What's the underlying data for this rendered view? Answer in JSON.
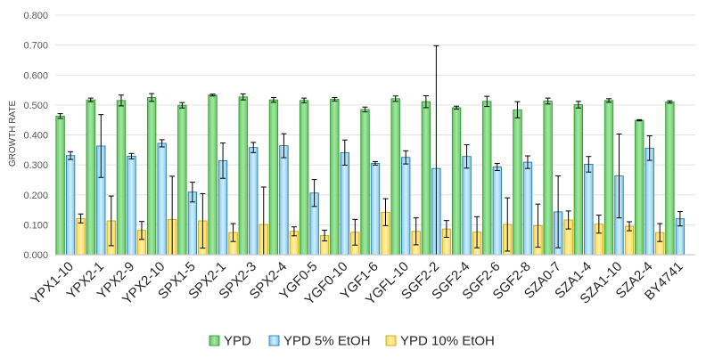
{
  "chart_data": {
    "type": "bar",
    "title": "",
    "xlabel": "",
    "ylabel": "GROWTH RATE",
    "ylim": [
      0,
      0.8
    ],
    "yticks": [
      "0.000",
      "0.100",
      "0.200",
      "0.300",
      "0.400",
      "0.500",
      "0.600",
      "0.700",
      "0.800"
    ],
    "grid": true,
    "legend_position": "bottom",
    "categories": [
      "YPX1-10",
      "YPX2-1",
      "YPX2-9",
      "YPX2-10",
      "SPX1-5",
      "SPX2-1",
      "SPX2-3",
      "SPX2-4",
      "YGF0-5",
      "YGF0-10",
      "YGF1-6",
      "YGFL-10",
      "SGF2-2",
      "SGF2-4",
      "SGF2-6",
      "SGF2-8",
      "SZA0-7",
      "SZA1-4",
      "SZA1-10",
      "SZA2-4",
      "BY4741"
    ],
    "series": [
      {
        "name": "YPD",
        "color": "#8fd98f",
        "values": [
          0.463,
          0.517,
          0.515,
          0.525,
          0.499,
          0.533,
          0.527,
          0.517,
          0.515,
          0.519,
          0.485,
          0.521,
          0.511,
          0.491,
          0.512,
          0.484,
          0.513,
          0.501,
          0.515,
          0.449,
          0.51
        ],
        "errors": [
          0.008,
          0.006,
          0.018,
          0.013,
          0.009,
          0.003,
          0.01,
          0.008,
          0.008,
          0.006,
          0.008,
          0.009,
          0.02,
          0.005,
          0.017,
          0.027,
          0.01,
          0.011,
          0.006,
          0.002,
          0.004
        ]
      },
      {
        "name": "YPD 5% EtOH",
        "color": "#b9e2f5",
        "values": [
          0.331,
          0.363,
          0.329,
          0.372,
          0.209,
          0.314,
          0.358,
          0.364,
          0.206,
          0.341,
          0.305,
          0.325,
          0.288,
          0.328,
          0.293,
          0.309,
          0.143,
          0.302,
          0.263,
          0.356,
          0.12
        ],
        "errors": [
          0.013,
          0.105,
          0.009,
          0.012,
          0.033,
          0.059,
          0.017,
          0.04,
          0.045,
          0.042,
          0.006,
          0.022,
          0.41,
          0.039,
          0.012,
          0.021,
          0.12,
          0.026,
          0.14,
          0.041,
          0.024
        ]
      },
      {
        "name": "YPD 10% EtOH",
        "color": "#ffe680",
        "values": [
          0.121,
          0.113,
          0.081,
          0.118,
          0.113,
          0.074,
          0.101,
          0.078,
          0.064,
          0.075,
          0.142,
          0.078,
          0.086,
          0.075,
          0.101,
          0.097,
          0.116,
          0.102,
          0.095,
          0.074,
          0.0
        ],
        "errors": [
          0.015,
          0.083,
          0.03,
          0.144,
          0.091,
          0.03,
          0.125,
          0.015,
          0.018,
          0.043,
          0.045,
          0.045,
          0.028,
          0.052,
          0.089,
          0.072,
          0.03,
          0.03,
          0.015,
          0.03,
          0.0
        ]
      }
    ]
  }
}
